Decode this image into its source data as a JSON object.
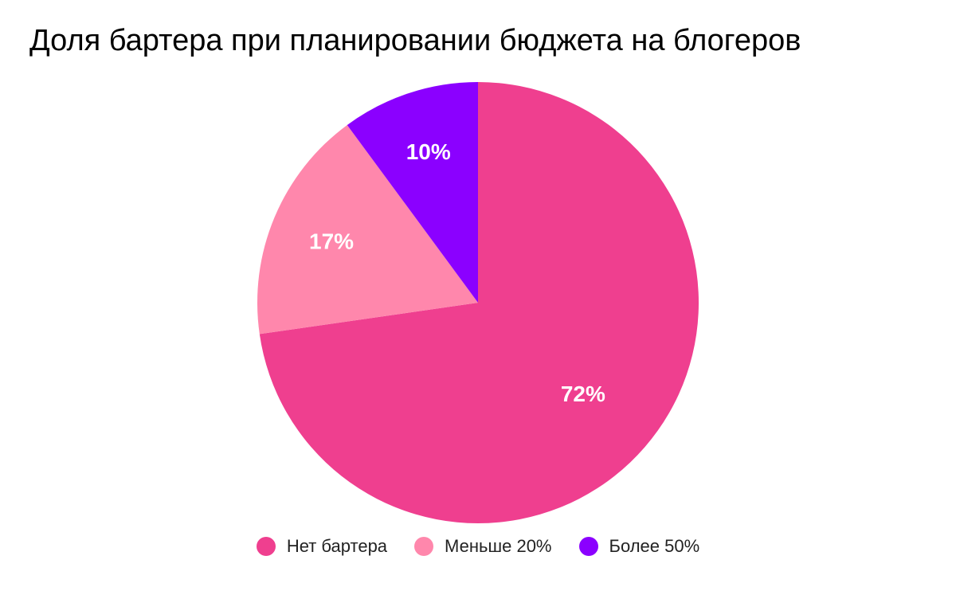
{
  "chart_data": {
    "type": "pie",
    "title": "Доля бартера при планировании бюджета на блогеров",
    "slices": [
      {
        "label": "Нет бартера",
        "value": 72,
        "display": "72%",
        "color": "#EF3F8F"
      },
      {
        "label": "Меньше 20%",
        "value": 17,
        "display": "17%",
        "color": "#FF87AC"
      },
      {
        "label": "Более 50%",
        "value": 10,
        "display": "10%",
        "color": "#8B00FF"
      }
    ],
    "legend_position": "bottom"
  }
}
